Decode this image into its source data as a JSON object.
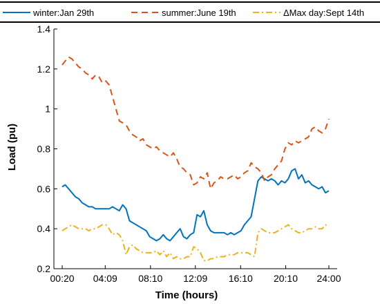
{
  "chart_data": {
    "type": "line",
    "xlabel": "Time (hours)",
    "ylabel": "Load (pu)",
    "xlim": [
      0.33,
      24.0
    ],
    "ylim": [
      0.2,
      1.4
    ],
    "x_ticks": [
      {
        "value": 0.333,
        "label": "00:20"
      },
      {
        "value": 4.15,
        "label": "04:09"
      },
      {
        "value": 8.167,
        "label": "08:10"
      },
      {
        "value": 12.15,
        "label": "12:09"
      },
      {
        "value": 16.167,
        "label": "16:10"
      },
      {
        "value": 20.167,
        "label": "20:10"
      },
      {
        "value": 24.0,
        "label": "24:00"
      }
    ],
    "y_ticks": [
      {
        "value": 0.2,
        "label": "0.2"
      },
      {
        "value": 0.4,
        "label": "0.4"
      },
      {
        "value": 0.6,
        "label": "0.6"
      },
      {
        "value": 0.8,
        "label": "0.8"
      },
      {
        "value": 1.0,
        "label": "1"
      },
      {
        "value": 1.2,
        "label": "1.2"
      },
      {
        "value": 1.4,
        "label": "1.4"
      }
    ],
    "grid": false,
    "legend_position": "top, outside plot, horizontal",
    "series": [
      {
        "name": "winter:Jan 29th",
        "color": "#0072BD",
        "dash": "solid",
        "x": [
          0.33,
          0.6,
          0.9,
          1.2,
          1.5,
          1.8,
          2.1,
          2.4,
          2.7,
          3.0,
          3.3,
          3.6,
          3.9,
          4.2,
          4.5,
          4.8,
          5.1,
          5.4,
          5.7,
          6.0,
          6.3,
          6.6,
          6.9,
          7.2,
          7.5,
          7.8,
          8.1,
          8.4,
          8.7,
          9.0,
          9.3,
          9.6,
          9.9,
          10.2,
          10.5,
          10.8,
          11.1,
          11.4,
          11.7,
          12.0,
          12.3,
          12.6,
          12.9,
          13.2,
          13.5,
          13.8,
          14.1,
          14.4,
          14.7,
          15.0,
          15.3,
          15.6,
          15.9,
          16.2,
          16.5,
          16.8,
          17.1,
          17.4,
          17.7,
          18.0,
          18.3,
          18.6,
          18.9,
          19.2,
          19.5,
          19.8,
          20.1,
          20.4,
          20.7,
          21.0,
          21.3,
          21.6,
          21.9,
          22.2,
          22.5,
          22.8,
          23.1,
          23.4,
          23.7,
          24.0
        ],
        "y": [
          0.61,
          0.62,
          0.6,
          0.58,
          0.56,
          0.55,
          0.53,
          0.52,
          0.51,
          0.51,
          0.5,
          0.5,
          0.5,
          0.5,
          0.5,
          0.51,
          0.5,
          0.49,
          0.52,
          0.5,
          0.44,
          0.43,
          0.42,
          0.41,
          0.4,
          0.39,
          0.36,
          0.35,
          0.34,
          0.35,
          0.37,
          0.35,
          0.34,
          0.36,
          0.38,
          0.4,
          0.36,
          0.35,
          0.37,
          0.38,
          0.47,
          0.46,
          0.49,
          0.42,
          0.39,
          0.38,
          0.38,
          0.38,
          0.38,
          0.37,
          0.38,
          0.37,
          0.38,
          0.39,
          0.42,
          0.44,
          0.46,
          0.55,
          0.64,
          0.66,
          0.65,
          0.64,
          0.65,
          0.64,
          0.62,
          0.64,
          0.63,
          0.65,
          0.69,
          0.7,
          0.65,
          0.67,
          0.63,
          0.64,
          0.62,
          0.61,
          0.6,
          0.61,
          0.58,
          0.59
        ]
      },
      {
        "name": "summer:June 19th",
        "color": "#D95319",
        "dash": "dashed",
        "x": [
          0.33,
          0.6,
          0.9,
          1.2,
          1.5,
          1.8,
          2.1,
          2.4,
          2.7,
          3.0,
          3.3,
          3.6,
          3.9,
          4.2,
          4.5,
          4.8,
          5.1,
          5.4,
          5.7,
          6.0,
          6.3,
          6.6,
          6.9,
          7.2,
          7.5,
          7.8,
          8.1,
          8.4,
          8.7,
          9.0,
          9.3,
          9.6,
          9.9,
          10.2,
          10.5,
          10.8,
          11.1,
          11.4,
          11.7,
          12.0,
          12.3,
          12.6,
          12.9,
          13.2,
          13.5,
          13.8,
          14.1,
          14.4,
          14.7,
          15.0,
          15.3,
          15.6,
          15.9,
          16.2,
          16.5,
          16.8,
          17.1,
          17.4,
          17.7,
          18.0,
          18.3,
          18.6,
          18.9,
          19.2,
          19.5,
          19.8,
          20.1,
          20.4,
          20.7,
          21.0,
          21.3,
          21.6,
          21.9,
          22.2,
          22.5,
          22.8,
          23.1,
          23.4,
          23.7,
          24.0
        ],
        "y": [
          1.22,
          1.24,
          1.26,
          1.25,
          1.23,
          1.21,
          1.2,
          1.18,
          1.17,
          1.15,
          1.17,
          1.16,
          1.13,
          1.14,
          1.12,
          1.06,
          1.0,
          0.94,
          0.93,
          0.92,
          0.89,
          0.87,
          0.86,
          0.84,
          0.85,
          0.82,
          0.81,
          0.8,
          0.81,
          0.79,
          0.78,
          0.77,
          0.76,
          0.78,
          0.75,
          0.71,
          0.7,
          0.68,
          0.67,
          0.62,
          0.63,
          0.66,
          0.65,
          0.68,
          0.6,
          0.63,
          0.64,
          0.66,
          0.65,
          0.65,
          0.66,
          0.67,
          0.65,
          0.66,
          0.68,
          0.69,
          0.73,
          0.71,
          0.7,
          0.68,
          0.64,
          0.66,
          0.67,
          0.7,
          0.72,
          0.74,
          0.8,
          0.83,
          0.82,
          0.84,
          0.83,
          0.84,
          0.85,
          0.86,
          0.9,
          0.91,
          0.89,
          0.88,
          0.9,
          0.95
        ]
      },
      {
        "name": "ΔMax day:Sept 14th",
        "color": "#EDB120",
        "dash": "dashdot",
        "x": [
          0.33,
          0.6,
          0.9,
          1.2,
          1.5,
          1.8,
          2.1,
          2.4,
          2.7,
          3.0,
          3.3,
          3.6,
          3.9,
          4.2,
          4.5,
          4.8,
          5.1,
          5.4,
          5.7,
          6.0,
          6.3,
          6.6,
          6.9,
          7.2,
          7.5,
          7.8,
          8.1,
          8.4,
          8.7,
          9.0,
          9.3,
          9.6,
          9.9,
          10.2,
          10.5,
          10.8,
          11.1,
          11.4,
          11.7,
          12.0,
          12.3,
          12.6,
          12.9,
          13.2,
          13.5,
          13.8,
          14.1,
          14.4,
          14.7,
          15.0,
          15.3,
          15.6,
          15.9,
          16.2,
          16.5,
          16.8,
          17.1,
          17.4,
          17.7,
          18.0,
          18.3,
          18.6,
          18.9,
          19.2,
          19.5,
          19.8,
          20.1,
          20.4,
          20.7,
          21.0,
          21.3,
          21.6,
          21.9,
          22.2,
          22.5,
          22.8,
          23.1,
          23.4,
          23.7,
          24.0
        ],
        "y": [
          0.39,
          0.4,
          0.41,
          0.42,
          0.41,
          0.4,
          0.4,
          0.4,
          0.39,
          0.4,
          0.4,
          0.41,
          0.42,
          0.42,
          0.4,
          0.37,
          0.38,
          0.37,
          0.34,
          0.27,
          0.31,
          0.32,
          0.3,
          0.29,
          0.28,
          0.28,
          0.28,
          0.28,
          0.29,
          0.27,
          0.29,
          0.26,
          0.28,
          0.25,
          0.26,
          0.25,
          0.25,
          0.26,
          0.26,
          0.31,
          0.3,
          0.28,
          0.24,
          0.24,
          0.25,
          0.25,
          0.26,
          0.26,
          0.26,
          0.27,
          0.27,
          0.27,
          0.28,
          0.28,
          0.28,
          0.28,
          0.27,
          0.26,
          0.38,
          0.4,
          0.39,
          0.38,
          0.38,
          0.38,
          0.39,
          0.4,
          0.41,
          0.42,
          0.4,
          0.39,
          0.38,
          0.38,
          0.39,
          0.4,
          0.4,
          0.41,
          0.4,
          0.4,
          0.42,
          0.41
        ]
      }
    ]
  }
}
